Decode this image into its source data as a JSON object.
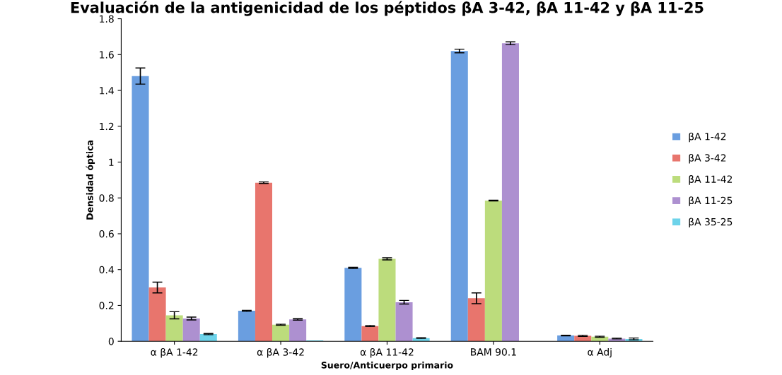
{
  "chart_data": {
    "type": "bar",
    "title": "Evaluación de la antigenicidad de los péptidos βA 3-42, βA 11-42 y βA 11-25",
    "xlabel": "Suero/Anticuerpo primario",
    "ylabel": "Densidad óptica",
    "categories": [
      "α βA 1-42",
      "α βA 3-42",
      "α βA 11-42",
      "BAM 90.1",
      "α Adj"
    ],
    "series": [
      {
        "name": "βA 1-42",
        "color": "#6a9ee0",
        "values": [
          1.48,
          0.17,
          0.41,
          1.62,
          0.032
        ],
        "errors": [
          0.045,
          0.003,
          0.003,
          0.01,
          0.002
        ]
      },
      {
        "name": "βA 3-42",
        "color": "#e8756d",
        "values": [
          0.3,
          0.885,
          0.085,
          0.24,
          0.03
        ],
        "errors": [
          0.03,
          0.004,
          0.003,
          0.03,
          0.003
        ]
      },
      {
        "name": "βA 11-42",
        "color": "#bcdc7c",
        "values": [
          0.145,
          0.092,
          0.46,
          0.785,
          0.025
        ],
        "errors": [
          0.02,
          0.003,
          0.006,
          0.002,
          0.003
        ]
      },
      {
        "name": "βA 11-25",
        "color": "#ad90d0",
        "values": [
          0.127,
          0.122,
          0.218,
          1.663,
          0.015
        ],
        "errors": [
          0.008,
          0.004,
          0.01,
          0.008,
          0.002
        ]
      },
      {
        "name": "βA 35-25",
        "color": "#6dd3ea",
        "values": [
          0.04,
          0.005,
          0.018,
          null,
          0.013
        ],
        "errors": [
          0.003,
          null,
          0.002,
          null,
          0.005
        ]
      }
    ],
    "ylim": [
      0,
      1.8
    ],
    "yticks": [
      0,
      0.2,
      0.4,
      0.6,
      0.8,
      1,
      1.2,
      1.4,
      1.6,
      1.8
    ],
    "grid": false,
    "legend": "right"
  }
}
